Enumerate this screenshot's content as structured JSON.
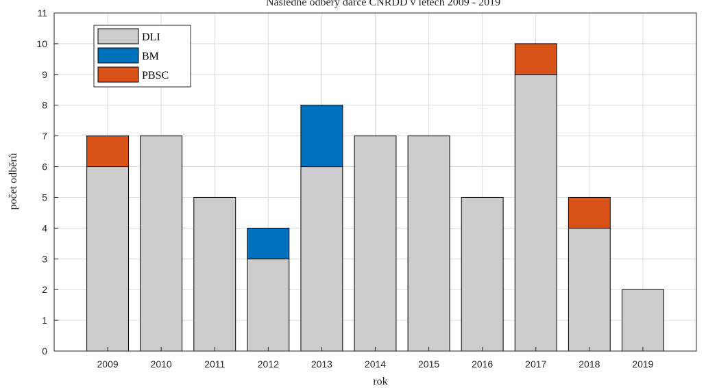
{
  "chart_data": {
    "type": "bar",
    "stacked": true,
    "title": "Následné odběry dárce ČNRDD v letech 2009 - 2019",
    "xlabel": "rok",
    "ylabel": "počet odběrů",
    "categories": [
      "2009",
      "2010",
      "2011",
      "2012",
      "2013",
      "2014",
      "2015",
      "2016",
      "2017",
      "2018",
      "2019"
    ],
    "series": [
      {
        "name": "DLI",
        "color": "#cccccc",
        "values": [
          6,
          7,
          5,
          3,
          6,
          7,
          7,
          5,
          9,
          4,
          2
        ]
      },
      {
        "name": "BM",
        "color": "#0072bd",
        "values": [
          0,
          0,
          0,
          1,
          2,
          0,
          0,
          0,
          0,
          0,
          0
        ]
      },
      {
        "name": "PBSC",
        "color": "#d95319",
        "values": [
          1,
          0,
          0,
          0,
          0,
          0,
          0,
          0,
          1,
          1,
          0
        ]
      }
    ],
    "ylim": [
      0,
      11
    ],
    "yticks": [
      0,
      1,
      2,
      3,
      4,
      5,
      6,
      7,
      8,
      9,
      10,
      11
    ],
    "grid": true,
    "legend_position": "top-left"
  }
}
